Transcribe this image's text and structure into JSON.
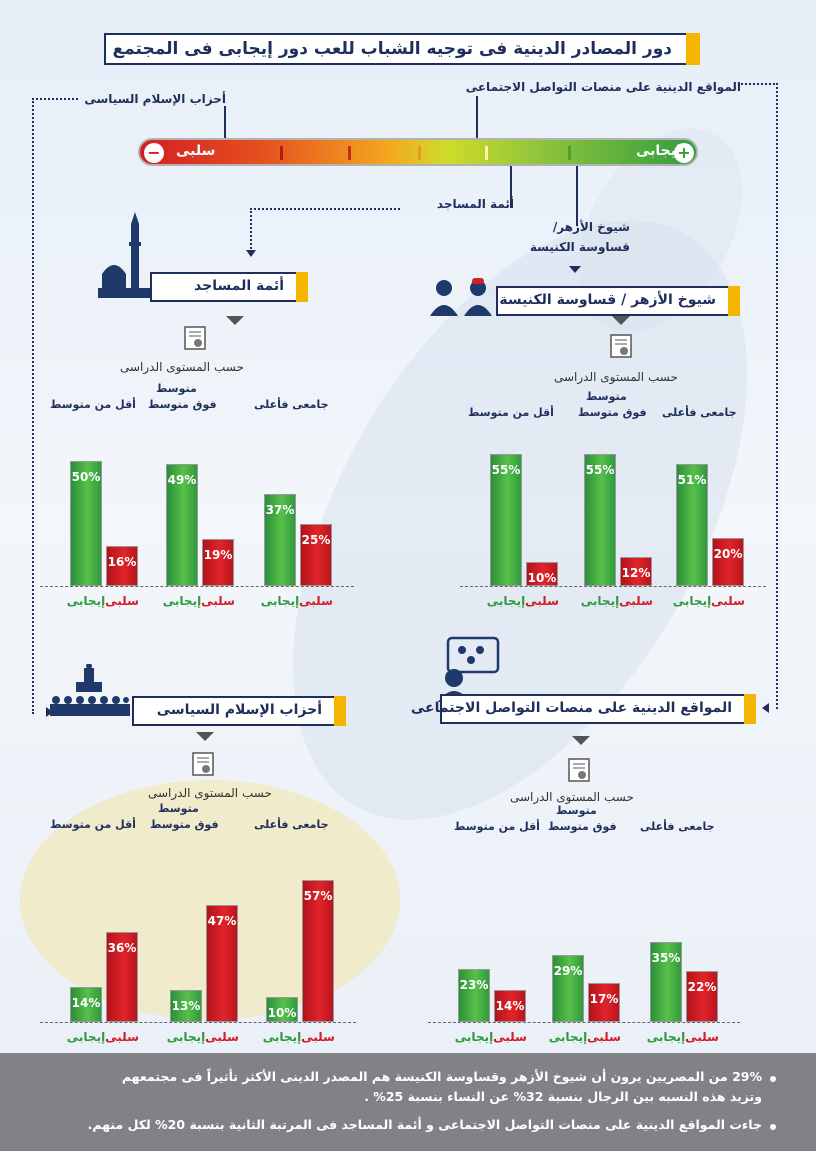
{
  "title": "دور المصادر الدينية فى توجيه الشباب للعب دور إيجابى فى المجتمع",
  "scale": {
    "positive_label": "إيجابى",
    "negative_label": "سلبى",
    "plus_symbol": "+",
    "minus_symbol": "−",
    "callouts": {
      "social": "المواقع الدينية على منصات التواصل الاجتماعى",
      "parties": "أحزاب الإسلام السياسى",
      "mosques": "أئمة المساجد",
      "azhar_line1": "شيوخ الأزهر/",
      "azhar_line2": "قساوسة الكنيسة"
    }
  },
  "sections": {
    "mosques": {
      "header": "أئمة المساجد",
      "sub": "حسب المستوى الدراسى",
      "groups": [
        {
          "label_l1": "",
          "label_l2": "جامعى فأعلى"
        },
        {
          "label_l1": "متوسط",
          "label_l2": "فوق متوسط"
        },
        {
          "label_l1": "",
          "label_l2": "أقل من متوسط"
        }
      ]
    },
    "azhar": {
      "header": "شيوخ الأزهر / قساوسة الكنيسة",
      "sub": "حسب المستوى الدراسى",
      "groups": [
        {
          "label_l1": "",
          "label_l2": "جامعى فأعلى"
        },
        {
          "label_l1": "متوسط",
          "label_l2": "فوق متوسط"
        },
        {
          "label_l1": "",
          "label_l2": "أقل من متوسط"
        }
      ]
    },
    "parties": {
      "header": "أحزاب الإسلام السياسى",
      "sub": "حسب المستوى الدراسى",
      "groups": [
        {
          "label_l1": "",
          "label_l2": "جامعى فأعلى"
        },
        {
          "label_l1": "متوسط",
          "label_l2": "فوق متوسط"
        },
        {
          "label_l1": "",
          "label_l2": "أقل من متوسط"
        }
      ]
    },
    "social": {
      "header": "المواقع الدينية على منصات التواصل الاجتماعى",
      "sub": "حسب المستوى الدراسى",
      "groups": [
        {
          "label_l1": "",
          "label_l2": "جامعى فأعلى"
        },
        {
          "label_l1": "متوسط",
          "label_l2": "فوق متوسط"
        },
        {
          "label_l1": "",
          "label_l2": "أقل من متوسط"
        }
      ]
    }
  },
  "bar_labels": {
    "positive": "إيجابى",
    "negative": "سلبى"
  },
  "chart_data": [
    {
      "type": "bar",
      "title": "أئمة المساجد",
      "categories": [
        "جامعى فأعلى",
        "فوق متوسط / متوسط",
        "أقل من متوسط"
      ],
      "series": [
        {
          "name": "إيجابى",
          "values": [
            37,
            49,
            50
          ]
        },
        {
          "name": "سلبى",
          "values": [
            25,
            19,
            16
          ]
        }
      ],
      "unit": "%"
    },
    {
      "type": "bar",
      "title": "شيوخ الأزهر / قساوسة الكنيسة",
      "categories": [
        "جامعى فأعلى",
        "فوق متوسط / متوسط",
        "أقل من متوسط"
      ],
      "series": [
        {
          "name": "إيجابى",
          "values": [
            51,
            55,
            55
          ]
        },
        {
          "name": "سلبى",
          "values": [
            20,
            12,
            10
          ]
        }
      ],
      "unit": "%"
    },
    {
      "type": "bar",
      "title": "أحزاب الإسلام السياسى",
      "categories": [
        "جامعى فأعلى",
        "فوق متوسط / متوسط",
        "أقل من متوسط"
      ],
      "series": [
        {
          "name": "إيجابى",
          "values": [
            10,
            13,
            14
          ]
        },
        {
          "name": "سلبى",
          "values": [
            57,
            47,
            36
          ]
        }
      ],
      "unit": "%"
    },
    {
      "type": "bar",
      "title": "المواقع الدينية على منصات التواصل الاجتماعى",
      "categories": [
        "جامعى فأعلى",
        "فوق متوسط / متوسط",
        "أقل من متوسط"
      ],
      "series": [
        {
          "name": "إيجابى",
          "values": [
            35,
            29,
            23
          ]
        },
        {
          "name": "سلبى",
          "values": [
            22,
            17,
            14
          ]
        }
      ],
      "unit": "%"
    }
  ],
  "footer": {
    "line1": "29% من المصريين يرون أن شيوخ الأزهر وقساوسة الكنيسة هم المصدر الدينى الأكثر تأثيراً فى مجتمعهم",
    "line2": "وتزيد هذه النسبه بين الرجال بنسبة 32% عن النساء بنسبة 25% .",
    "line3": "جاءت المواقع الدينية على منصات التواصل الاجتماعى و أئمة المساجد فى المرتبة الثانية بنسبة 20% لكل منهم."
  },
  "colors": {
    "positive": "#2e9b3c",
    "negative": "#d11d26",
    "navy": "#1f2f5c",
    "accent": "#f5b400"
  }
}
